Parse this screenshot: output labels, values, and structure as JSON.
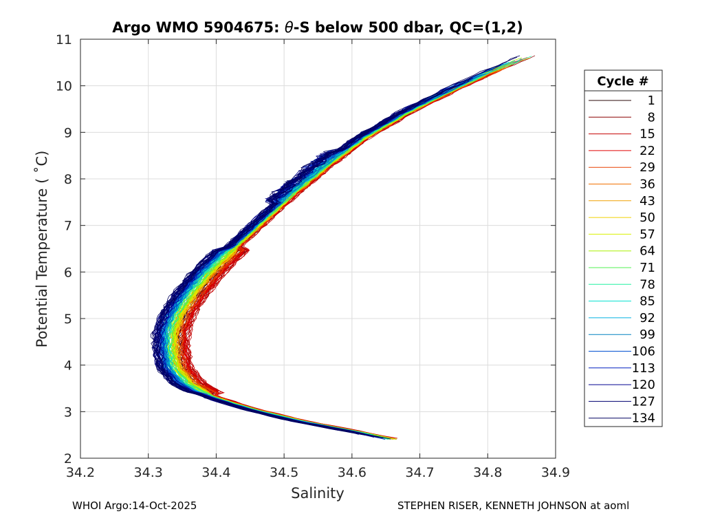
{
  "chart_data": {
    "type": "line",
    "title": "Argo WMO 5904675: θ-S below 500 dbar,  QC=(1,2)",
    "title_prefix": "Argo WMO 5904675: ",
    "title_theta": "θ",
    "title_suffix": "-S below 500 dbar,  QC=(1,2)",
    "xlabel": "Salinity",
    "ylabel": "Potential Temperature ( ˚C)",
    "xlim": [
      34.2,
      34.9
    ],
    "ylim": [
      2,
      11
    ],
    "xticks": [
      "34.2",
      "34.3",
      "34.4",
      "34.5",
      "34.6",
      "34.7",
      "34.8",
      "34.9"
    ],
    "yticks": [
      "2",
      "3",
      "4",
      "5",
      "6",
      "7",
      "8",
      "9",
      "10",
      "11"
    ],
    "grid": true,
    "legend": {
      "title": "Cycle #",
      "position": "right",
      "entries": [
        {
          "label": "1",
          "color": "#2b0a0a"
        },
        {
          "label": "8",
          "color": "#8a0000"
        },
        {
          "label": "15",
          "color": "#c40000"
        },
        {
          "label": "22",
          "color": "#e00000"
        },
        {
          "label": "29",
          "color": "#e84000"
        },
        {
          "label": "36",
          "color": "#f07000"
        },
        {
          "label": "43",
          "color": "#f0a000"
        },
        {
          "label": "50",
          "color": "#f0d000"
        },
        {
          "label": "57",
          "color": "#d8f000"
        },
        {
          "label": "64",
          "color": "#a8f000"
        },
        {
          "label": "71",
          "color": "#50f050"
        },
        {
          "label": "78",
          "color": "#20f0a0"
        },
        {
          "label": "85",
          "color": "#00e0d0"
        },
        {
          "label": "92",
          "color": "#00b0e0"
        },
        {
          "label": "99",
          "color": "#0080c0"
        },
        {
          "label": "106",
          "color": "#0050d0"
        },
        {
          "label": "113",
          "color": "#0020c0"
        },
        {
          "label": "120",
          "color": "#000090"
        },
        {
          "label": "127",
          "color": "#000070"
        },
        {
          "label": "134",
          "color": "#000060"
        }
      ]
    },
    "series_model": {
      "description": "Temperature-salinity curve; each cycle follows the base curve plus offset",
      "base_curve": [
        {
          "s": 34.66,
          "t": 2.4
        },
        {
          "s": 34.6,
          "t": 2.58
        },
        {
          "s": 34.52,
          "t": 2.8
        },
        {
          "s": 34.45,
          "t": 3.05
        },
        {
          "s": 34.39,
          "t": 3.32
        },
        {
          "s": 34.355,
          "t": 3.6
        },
        {
          "s": 34.335,
          "t": 3.95
        },
        {
          "s": 34.33,
          "t": 4.35
        },
        {
          "s": 34.33,
          "t": 4.7
        },
        {
          "s": 34.34,
          "t": 5.1
        },
        {
          "s": 34.36,
          "t": 5.55
        },
        {
          "s": 34.385,
          "t": 6.0
        },
        {
          "s": 34.42,
          "t": 6.5
        },
        {
          "s": 34.465,
          "t": 7.1
        },
        {
          "s": 34.51,
          "t": 7.7
        },
        {
          "s": 34.56,
          "t": 8.3
        },
        {
          "s": 34.615,
          "t": 8.9
        },
        {
          "s": 34.68,
          "t": 9.45
        },
        {
          "s": 34.75,
          "t": 9.95
        },
        {
          "s": 34.81,
          "t": 10.35
        },
        {
          "s": 34.86,
          "t": 10.65
        }
      ],
      "salinity_offsets_by_group": [
        0.018,
        0.024,
        0.026,
        0.022,
        0.015,
        0.01,
        0.008,
        0.006,
        0.004,
        0.002,
        0.0,
        -0.002,
        -0.004,
        -0.006,
        -0.008,
        -0.012,
        -0.014,
        -0.016,
        -0.018,
        -0.018
      ]
    }
  },
  "footer": {
    "left": "WHOI Argo:14-Oct-2025",
    "right": "STEPHEN RISER, KENNETH JOHNSON at aoml"
  }
}
